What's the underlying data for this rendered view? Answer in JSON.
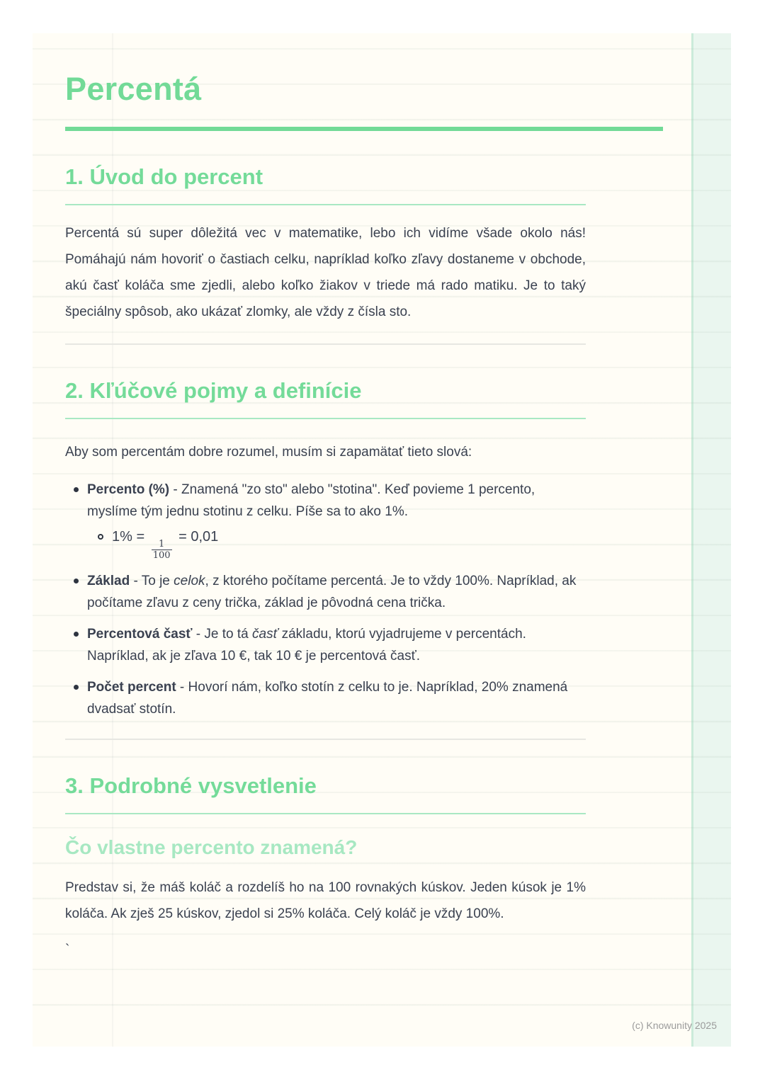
{
  "page": {
    "title": "Percentá",
    "footer": "(c) Knowunity 2025",
    "stray_mark": "`",
    "colors": {
      "accent_green": "#72DA97",
      "pale_green_rule": "#A9E8C3",
      "pale_green_subhead": "#A7E8C2",
      "band_green": "#EAF6EF",
      "paper_cream": "#FFFDF6",
      "body_text": "#3A4150",
      "footer_gray": "#9B9B9B"
    }
  },
  "sections": {
    "s1": {
      "heading": "1. Úvod do percent",
      "paragraph": "Percentá sú super dôležitá vec v matematike, lebo ich vidíme všade okolo nás! Pomáhajú nám hovoriť o častiach celku, napríklad koľko zľavy dostaneme v obchode, akú časť koláča sme zjedli, alebo koľko žiakov v triede má rado matiku. Je to taký špeciálny spôsob, ako ukázať zlomky, ale vždy z čísla sto."
    },
    "s2": {
      "heading": "2. Kľúčové pojmy a definície",
      "intro": "Aby som percentám dobre rozumel, musím si zapamätať tieto slová:",
      "bullets": {
        "b1": {
          "lead": "Percento (%)",
          "rest": " - Znamená \"zo sto\" alebo \"stotina\". Keď povieme 1 percento, myslíme tým jednu stotinu z celku. Píše sa to ako 1%.",
          "sub": {
            "pre": "1% = ",
            "num": "1",
            "den": "100",
            "post": " = 0,01"
          }
        },
        "b2": {
          "lead": "Základ",
          "rest1": " - To je ",
          "italic": "celok",
          "rest2": ", z ktorého počítame percentá. Je to vždy 100%. Napríklad, ak počítame zľavu z ceny trička, základ je pôvodná cena trička."
        },
        "b3": {
          "lead": "Percentová časť",
          "rest1": " - Je to tá ",
          "italic": "časť",
          "rest2": " základu, ktorú vyjadrujeme v percentách. Napríklad, ak je zľava 10 €, tak 10 € je percentová časť."
        },
        "b4": {
          "lead": "Počet percent",
          "rest": " - Hovorí nám, koľko stotín z celku to je. Napríklad, 20% znamená dvadsať stotín."
        }
      }
    },
    "s3": {
      "heading": "3. Podrobné vysvetlenie",
      "subheading": "Čo vlastne percento znamená?",
      "paragraph": "Predstav si, že máš koláč a rozdelíš ho na 100 rovnakých kúskov. Jeden kúsok je 1% koláča. Ak zješ 25 kúskov, zjedol si 25% koláča. Celý koláč je vždy 100%."
    }
  }
}
